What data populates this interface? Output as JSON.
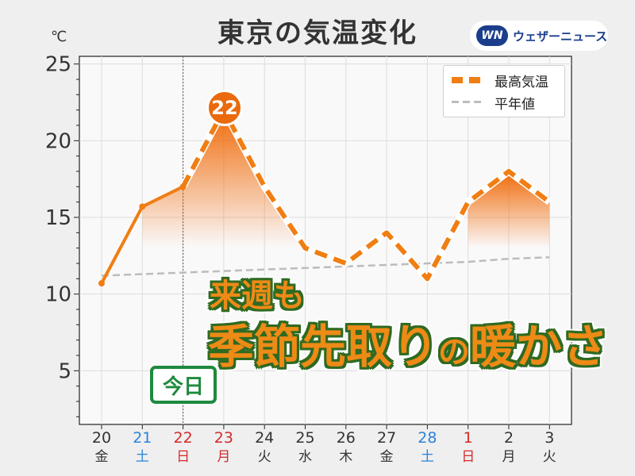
{
  "header": {
    "title": "東京の気温変化"
  },
  "logo": {
    "mark": "WN",
    "text": "ウェザーニュース"
  },
  "peak_badge": "22",
  "today_badge": "今日",
  "headline": {
    "line1": "来週も",
    "line2_a": "季節先取り",
    "line2_b": "の",
    "line2_c": "暖かさ"
  },
  "chart_data": {
    "type": "line",
    "unit": "℃",
    "ylim": [
      1.5,
      25.5
    ],
    "yticks": [
      5,
      10,
      15,
      20,
      25
    ],
    "grid": true,
    "legend_position": "top-right",
    "today_index": 2,
    "categories": [
      {
        "date": "20",
        "weekday": "金",
        "color": "#333333"
      },
      {
        "date": "21",
        "weekday": "土",
        "color": "#2b82d9"
      },
      {
        "date": "22",
        "weekday": "日",
        "color": "#d42a2a"
      },
      {
        "date": "23",
        "weekday": "月",
        "color": "#d42a2a"
      },
      {
        "date": "24",
        "weekday": "火",
        "color": "#333333"
      },
      {
        "date": "25",
        "weekday": "水",
        "color": "#333333"
      },
      {
        "date": "26",
        "weekday": "木",
        "color": "#333333"
      },
      {
        "date": "27",
        "weekday": "金",
        "color": "#333333"
      },
      {
        "date": "28",
        "weekday": "土",
        "color": "#2b82d9"
      },
      {
        "date": "1",
        "weekday": "日",
        "color": "#d42a2a"
      },
      {
        "date": "2",
        "weekday": "月",
        "color": "#333333"
      },
      {
        "date": "3",
        "weekday": "火",
        "color": "#333333"
      }
    ],
    "series": [
      {
        "name": "最高気温",
        "color": "#f07e13",
        "values": [
          10.7,
          15.7,
          17,
          22,
          17,
          13,
          12,
          14,
          11,
          16,
          18,
          16
        ]
      },
      {
        "name": "平年値",
        "color": "#bcbcbc",
        "values": [
          11.2,
          11.3,
          11.4,
          11.5,
          11.6,
          11.7,
          11.8,
          11.9,
          12.0,
          12.1,
          12.3,
          12.4
        ]
      }
    ]
  },
  "colors": {
    "accent": "#f07e13",
    "today_green": "#1e8a3e",
    "weekday_blue": "#2b82d9",
    "weekday_red": "#d42a2a"
  }
}
